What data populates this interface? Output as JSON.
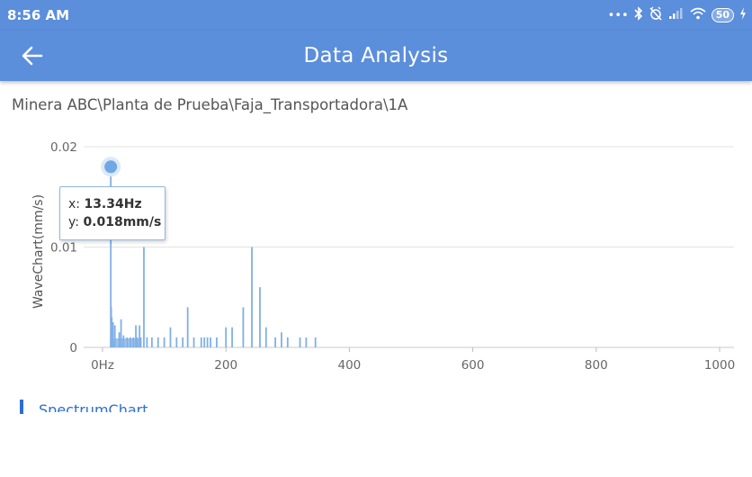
{
  "status_bar": {
    "time": "8:56 AM",
    "battery": "50"
  },
  "app_bar": {
    "title": "Data Analysis"
  },
  "breadcrumb": "Minera ABC\\Planta de Prueba\\Faja_Transportadora\\1A",
  "tooltip": {
    "x_label": "x: ",
    "x_value": "13.34Hz",
    "y_label": "y: ",
    "y_value": "0.018mm/s"
  },
  "section": {
    "title": "SpectrumChart"
  },
  "colors": {
    "primary": "#5b8edb",
    "series": "#7fb0e6",
    "accent": "#2c6fd0"
  },
  "chart_data": {
    "type": "bar",
    "ylabel": "WaveChart(mm/s)",
    "xlim": [
      0,
      1000
    ],
    "ylim": [
      0,
      0.02
    ],
    "x_ticks": [
      {
        "value": 0,
        "label": "0Hz"
      },
      {
        "value": 200,
        "label": "200"
      },
      {
        "value": 400,
        "label": "400"
      },
      {
        "value": 600,
        "label": "600"
      },
      {
        "value": 800,
        "label": "800"
      },
      {
        "value": 1000,
        "label": "1000"
      }
    ],
    "y_ticks": [
      {
        "value": 0,
        "label": "0"
      },
      {
        "value": 0.01,
        "label": "0.01"
      },
      {
        "value": 0.02,
        "label": "0.02"
      }
    ],
    "grid": true,
    "highlight": {
      "x": 13.34,
      "y": 0.018
    },
    "series": [
      {
        "x": [
          13.34,
          14,
          15,
          17,
          20,
          27,
          30,
          34,
          40,
          45,
          50,
          54,
          56,
          60,
          62,
          67,
          72,
          80,
          90,
          100,
          110,
          120,
          130,
          138,
          148,
          160,
          165,
          170,
          175,
          185,
          200,
          210,
          228,
          242,
          255,
          265,
          280,
          290,
          300,
          320,
          330,
          345
        ],
        "y": [
          0.018,
          0.004,
          0.003,
          0.0025,
          0.0022,
          0.0015,
          0.0028,
          0.0012,
          0.001,
          0.001,
          0.001,
          0.0022,
          0.001,
          0.0022,
          0.001,
          0.01,
          0.001,
          0.001,
          0.001,
          0.001,
          0.002,
          0.001,
          0.001,
          0.004,
          0.001,
          0.001,
          0.001,
          0.001,
          0.001,
          0.001,
          0.002,
          0.002,
          0.004,
          0.01,
          0.006,
          0.002,
          0.001,
          0.0015,
          0.001,
          0.001,
          0.001,
          0.001
        ]
      }
    ]
  }
}
